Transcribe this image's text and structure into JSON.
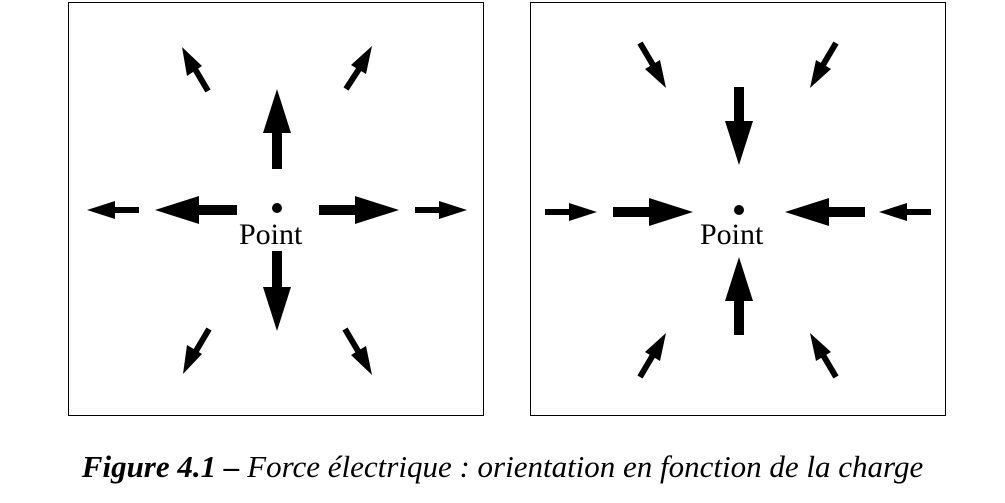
{
  "panels": [
    {
      "point_label": "Point",
      "direction": "outward"
    },
    {
      "point_label": "Point",
      "direction": "inward"
    }
  ],
  "caption": {
    "number": "Figure 4.1 –",
    "text": "Force électrique : orientation en fonction de la charge"
  }
}
